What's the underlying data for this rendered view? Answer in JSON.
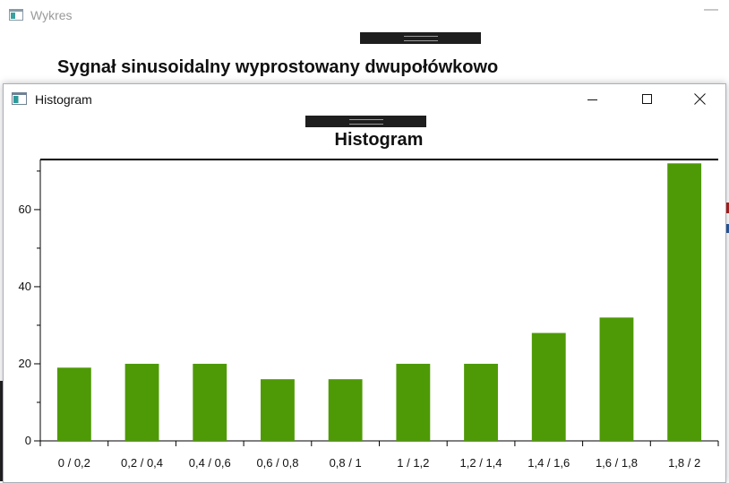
{
  "background_window": {
    "title": "Wykres",
    "heading": "Sygnał sinusoidalny wyprostowany dwupołówkowo",
    "minimize_glyph": "—"
  },
  "window": {
    "title": "Histogram",
    "icon": "app-window-icon",
    "controls": [
      "minimize-icon",
      "maximize-icon",
      "close-icon"
    ]
  },
  "colors": {
    "bar": "#4e9a06",
    "axis": "#000000",
    "drag_handle": "#1e1e1e"
  },
  "chart_data": {
    "type": "bar",
    "title": "Histogram",
    "categories": [
      "0 / 0,2",
      "0,2 / 0,4",
      "0,4 / 0,6",
      "0,6 / 0,8",
      "0,8 / 1",
      "1 / 1,2",
      "1,2 / 1,4",
      "1,4 / 1,6",
      "1,6 / 1,8",
      "1,8 / 2"
    ],
    "values": [
      19,
      20,
      20,
      16,
      16,
      20,
      20,
      28,
      32,
      72
    ],
    "ylim": [
      0,
      73
    ],
    "yticks": [
      0,
      20,
      40,
      60
    ],
    "ytick_labels": [
      "0",
      "20",
      "40",
      "60"
    ],
    "grid": false,
    "legend": "none"
  }
}
